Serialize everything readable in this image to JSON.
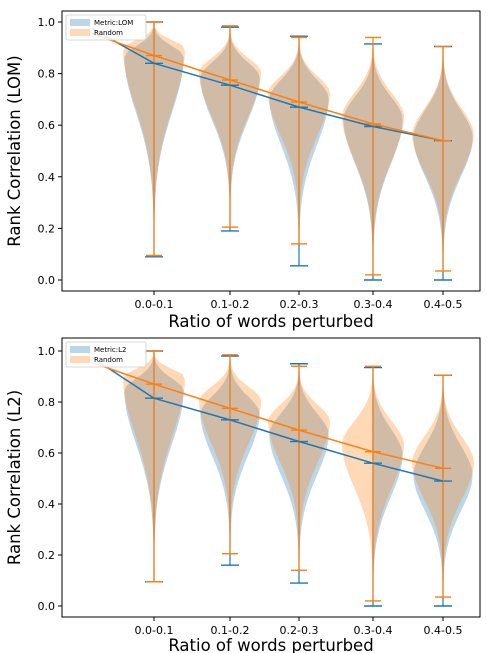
{
  "chart_data": [
    {
      "type": "violin",
      "xlabel": "Ratio of words perturbed",
      "ylabel": "Rank Correlation (LOM)",
      "ylim": [
        0.0,
        1.0
      ],
      "yticks": [
        "0.0",
        "0.2",
        "0.4",
        "0.6",
        "0.8",
        "1.0"
      ],
      "categories": [
        "0.0-0.1",
        "0.1-0.2",
        "0.2-0.3",
        "0.3-0.4",
        "0.4-0.5"
      ],
      "legend": {
        "position": "top-left",
        "entries": [
          "Metric:LOM",
          "Random"
        ]
      },
      "line_start": {
        "metric": 0.975,
        "random": 0.955
      },
      "series": [
        {
          "name": "Metric:LOM",
          "color": "#1f77b4",
          "median": [
            0.84,
            0.755,
            0.67,
            0.595,
            0.54
          ],
          "min": [
            0.09,
            0.19,
            0.055,
            0.0,
            0.0
          ],
          "max": [
            1.0,
            0.98,
            0.945,
            0.915,
            0.905
          ],
          "mode": [
            0.87,
            0.79,
            0.71,
            0.63,
            0.56
          ]
        },
        {
          "name": "Random",
          "color": "#ff7f0e",
          "median": [
            0.87,
            0.775,
            0.69,
            0.605,
            0.54
          ],
          "min": [
            0.095,
            0.205,
            0.14,
            0.02,
            0.035
          ],
          "max": [
            1.0,
            0.985,
            0.94,
            0.94,
            0.905
          ],
          "mode": [
            0.9,
            0.81,
            0.73,
            0.64,
            0.57
          ]
        }
      ]
    },
    {
      "type": "violin",
      "xlabel": "Ratio of words perturbed",
      "ylabel": "Rank Correlation (L2)",
      "ylim": [
        0.0,
        1.0
      ],
      "yticks": [
        "0.0",
        "0.2",
        "0.4",
        "0.6",
        "0.8",
        "1.0"
      ],
      "categories": [
        "0.0-0.1",
        "0.1-0.2",
        "0.2-0.3",
        "0.3-0.4",
        "0.4-0.5"
      ],
      "legend": {
        "position": "top-left",
        "entries": [
          "Metric:L2",
          "Random"
        ]
      },
      "line_start": {
        "metric": 0.975,
        "random": 0.955
      },
      "series": [
        {
          "name": "Metric:L2",
          "color": "#1f77b4",
          "median": [
            0.815,
            0.73,
            0.645,
            0.56,
            0.49
          ],
          "min": [
            0.095,
            0.16,
            0.09,
            0.0,
            0.0
          ],
          "max": [
            1.0,
            0.98,
            0.95,
            0.935,
            0.905
          ],
          "mode": [
            0.85,
            0.76,
            0.68,
            0.6,
            0.52
          ]
        },
        {
          "name": "Random",
          "color": "#ff7f0e",
          "median": [
            0.87,
            0.775,
            0.69,
            0.605,
            0.54
          ],
          "min": [
            0.095,
            0.205,
            0.14,
            0.02,
            0.035
          ],
          "max": [
            1.0,
            0.985,
            0.94,
            0.94,
            0.905
          ],
          "mode": [
            0.9,
            0.81,
            0.73,
            0.64,
            0.57
          ]
        }
      ]
    }
  ]
}
